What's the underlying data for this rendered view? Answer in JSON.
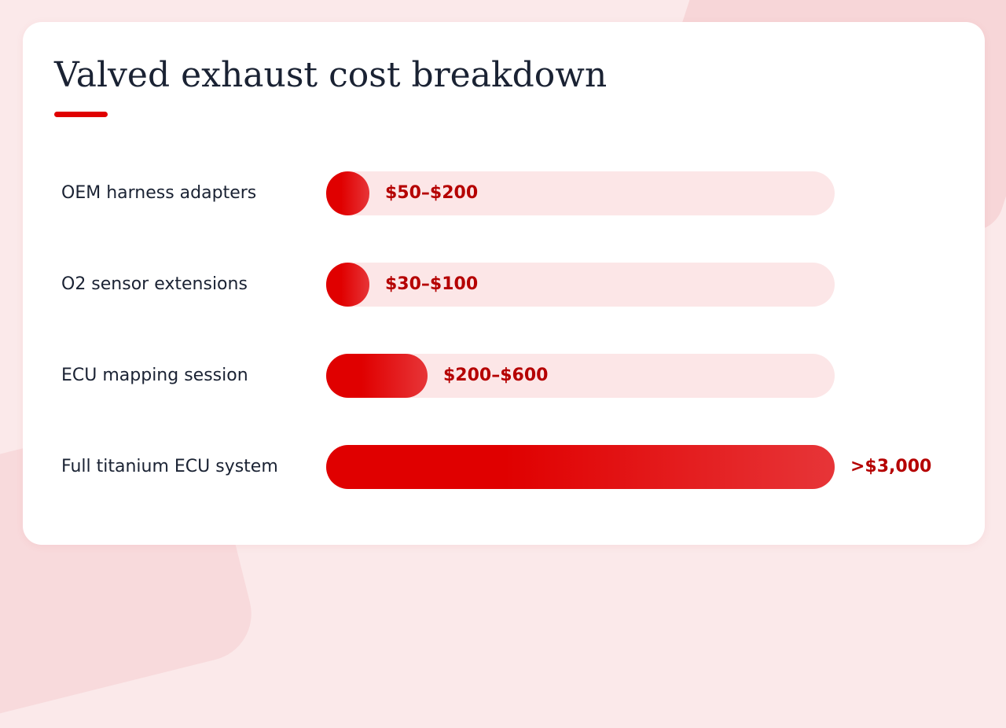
{
  "colors": {
    "accent": "#e00000",
    "track": "#fce6e7",
    "value_text": "#b50000",
    "text": "#1a2233"
  },
  "chart_data": {
    "type": "bar",
    "orientation": "horizontal",
    "title": "Valved exhaust cost breakdown",
    "categories": [
      "OEM harness adapters",
      "O2 sensor extensions",
      "ECU mapping session",
      "Full titanium ECU system"
    ],
    "value_labels": [
      "$50–$200",
      "$30–$100",
      "$200–$600",
      ">$3,000"
    ],
    "ranges": [
      [
        50,
        200
      ],
      [
        30,
        100
      ],
      [
        200,
        600
      ],
      [
        3000,
        null
      ]
    ],
    "relative_fill": [
      0.085,
      0.085,
      0.2,
      1.0
    ],
    "grid": false,
    "legend": "none"
  }
}
